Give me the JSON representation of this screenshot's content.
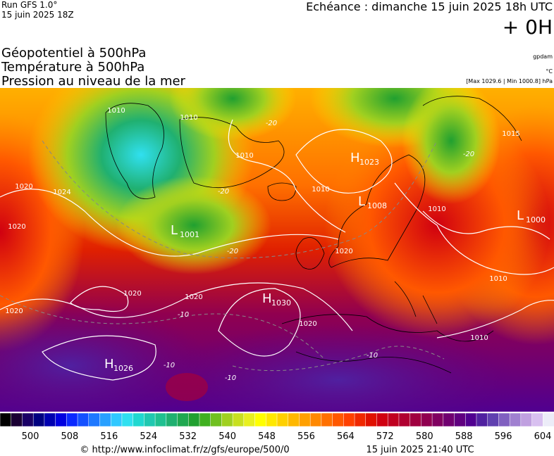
{
  "header": {
    "run": "Run GFS 1.0°",
    "run_date": "15 juin 2025 18Z",
    "echeance": "Echéance : dimanche 15 juin 2025 18h UTC",
    "offset": "+ 0H",
    "titles": [
      "Géopotentiel à 500hPa",
      "Température à 500hPa",
      "Pression au niveau de la mer"
    ],
    "unit_geo": "gpdam",
    "unit_temp": "°C",
    "pressure_range": "[Max 1029.6 | Min 1000.8] hPa"
  },
  "map": {
    "pressure_centers": [
      {
        "letter": "H",
        "value": "1023"
      },
      {
        "letter": "L",
        "value": "1008"
      },
      {
        "letter": "L",
        "value": "1000"
      },
      {
        "letter": "L",
        "value": "1001"
      },
      {
        "letter": "H",
        "value": "1030"
      },
      {
        "letter": "H",
        "value": "1026"
      }
    ],
    "isoline_labels": [
      "1020",
      "1024",
      "1020",
      "1010",
      "1010",
      "1010",
      "1010",
      "1020",
      "1020",
      "1020",
      "1020",
      "1020",
      "1010",
      "1010",
      "1010",
      "1015",
      "-20",
      "-20",
      "-20",
      "-20",
      "-10",
      "-10",
      "-10",
      "-10"
    ]
  },
  "colorbar": {
    "colors": [
      "#000000",
      "#1a0033",
      "#1a0066",
      "#000080",
      "#0000b0",
      "#0000e0",
      "#0a28ff",
      "#1450ff",
      "#1e78ff",
      "#28a0ff",
      "#30c8ff",
      "#30e0f0",
      "#20d8d0",
      "#20c8b0",
      "#20c090",
      "#20b070",
      "#20a850",
      "#20a030",
      "#40b020",
      "#70c020",
      "#a0d020",
      "#c8e020",
      "#e8f020",
      "#ffff00",
      "#ffe800",
      "#ffd000",
      "#ffb800",
      "#ffa000",
      "#ff8800",
      "#ff7000",
      "#ff5800",
      "#ff4000",
      "#f02800",
      "#e01000",
      "#d00010",
      "#c00020",
      "#b00030",
      "#a00040",
      "#900050",
      "#800060",
      "#700070",
      "#600080",
      "#500090",
      "#5020a0",
      "#6040b0",
      "#8060c0",
      "#a080d0",
      "#c0a0e0",
      "#d8c0f0",
      "#ececf8"
    ],
    "labels": [
      500,
      508,
      516,
      524,
      532,
      540,
      548,
      556,
      564,
      572,
      580,
      588,
      596,
      604
    ]
  },
  "footer": {
    "url": "© http://www.infoclimat.fr/z/gfs/europe/500/0",
    "generated": "15 juin 2025 21:40 UTC"
  }
}
